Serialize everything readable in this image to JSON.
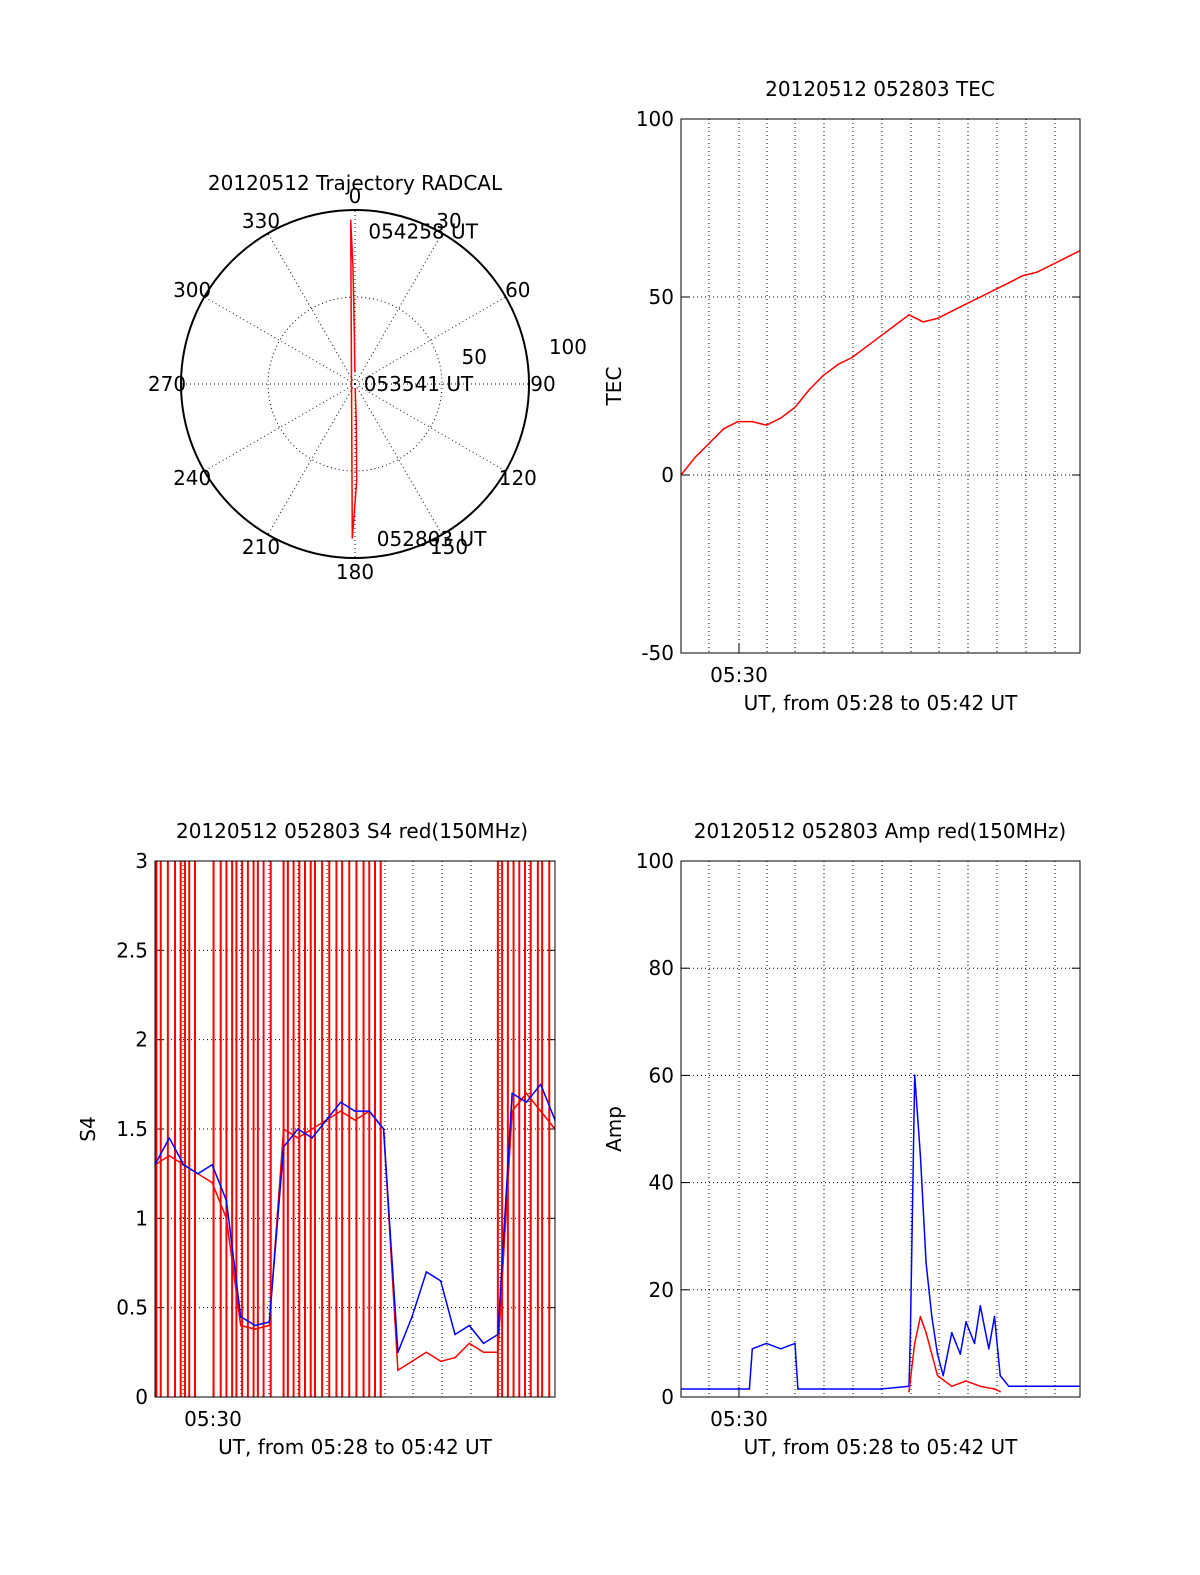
{
  "chart_data": [
    {
      "type": "polar",
      "title": "20120512 Trajectory RADCAL",
      "angle_labels": [
        "0",
        "30",
        "60",
        "90",
        "120",
        "150",
        "180",
        "210",
        "240",
        "270",
        "300",
        "330"
      ],
      "radius_labels": [
        "50",
        "100"
      ],
      "rlim": [
        0,
        100
      ],
      "track_color": "#ff0000",
      "track": {
        "az": [
          359.5,
          359.2,
          359.0,
          358.5,
          181.0,
          179.0,
          178.0,
          177.5
        ],
        "el": [
          84,
          60,
          30,
          5,
          10,
          40,
          70,
          88
        ]
      },
      "annotations": [
        {
          "text": "054258 UT",
          "az": 5,
          "r": 88
        },
        {
          "text": "053541 UT",
          "az": 90,
          "r": 5
        },
        {
          "text": "052803 UT",
          "az": 172,
          "r": 90
        }
      ]
    },
    {
      "type": "line",
      "title": "20120512 052803 TEC",
      "xlabel": "UT, from 05:28 to 05:42 UT",
      "ylabel": "TEC",
      "x_tick_label": "05:30",
      "xlim": [
        0,
        14
      ],
      "ylim": [
        -50,
        100
      ],
      "yticks": [
        "-50",
        "0",
        "50",
        "100"
      ],
      "grid": true,
      "series": [
        {
          "color": "#ff0000",
          "x": [
            0,
            0.5,
            1.0,
            1.5,
            2.0,
            2.5,
            3.0,
            3.5,
            4.0,
            4.5,
            5.0,
            5.5,
            6.0,
            6.5,
            7.0,
            7.5,
            8.0,
            8.5,
            9.0,
            9.5,
            10.0,
            10.5,
            11.0,
            11.5,
            12.0,
            12.5,
            13.0,
            13.5,
            14.0
          ],
          "y": [
            0,
            5,
            9,
            13,
            15,
            15,
            14,
            16,
            19,
            24,
            28,
            31,
            33,
            36,
            39,
            42,
            45,
            43,
            44,
            46,
            48,
            50,
            52,
            54,
            56,
            57,
            59,
            61,
            63
          ]
        }
      ]
    },
    {
      "type": "line",
      "title": "20120512 052803 S4 red(150MHz)",
      "xlabel": "UT, from 05:28 to 05:42 UT",
      "ylabel": "S4",
      "x_tick_label": "05:30",
      "xlim": [
        0,
        14
      ],
      "ylim": [
        0,
        3
      ],
      "yticks": [
        "0",
        "0.5",
        "1",
        "1.5",
        "2",
        "2.5",
        "3"
      ],
      "grid": true,
      "series": [
        {
          "color": "#ff0000",
          "x": [
            0,
            0.5,
            1.0,
            1.5,
            2.0,
            2.5,
            3.0,
            3.5,
            4.0,
            4.5,
            5.0,
            5.5,
            6.0,
            6.5,
            7.0,
            7.5,
            8.0,
            8.5,
            9.0,
            9.5,
            10.0,
            10.5,
            11.0,
            11.5,
            12.0,
            12.5,
            13.0,
            13.5,
            14.0
          ],
          "y": [
            1.3,
            1.35,
            1.3,
            1.25,
            1.2,
            1.0,
            0.4,
            0.38,
            0.4,
            1.5,
            1.45,
            1.5,
            1.55,
            1.6,
            1.55,
            1.6,
            1.5,
            0.15,
            0.2,
            0.25,
            0.2,
            0.22,
            0.3,
            0.25,
            0.25,
            1.6,
            1.7,
            1.6,
            1.5
          ],
          "spikes_x": [
            0.05,
            0.2,
            0.45,
            0.7,
            0.9,
            1.05,
            1.2,
            1.4,
            2.05,
            2.3,
            2.5,
            2.7,
            2.85,
            3.05,
            3.25,
            3.45,
            3.6,
            3.8,
            4.05,
            4.5,
            4.65,
            4.85,
            5.05,
            5.25,
            5.45,
            5.6,
            5.85,
            6.1,
            6.35,
            6.55,
            6.8,
            7.05,
            7.3,
            7.5,
            7.7,
            7.9,
            12.0,
            12.15,
            12.35,
            12.55,
            12.75,
            12.95,
            13.15,
            13.4,
            13.55,
            13.8
          ]
        },
        {
          "color": "#0000ff",
          "x": [
            0,
            0.5,
            1.0,
            1.5,
            2.0,
            2.5,
            3.0,
            3.5,
            4.0,
            4.5,
            5.0,
            5.5,
            6.0,
            6.5,
            7.0,
            7.5,
            8.0,
            8.5,
            9.0,
            9.5,
            10.0,
            10.5,
            11.0,
            11.5,
            12.0,
            12.5,
            13.0,
            13.5,
            14.0
          ],
          "y": [
            1.3,
            1.45,
            1.3,
            1.25,
            1.3,
            1.1,
            0.45,
            0.4,
            0.42,
            1.4,
            1.5,
            1.45,
            1.55,
            1.65,
            1.6,
            1.6,
            1.5,
            0.25,
            0.45,
            0.7,
            0.65,
            0.35,
            0.4,
            0.3,
            0.35,
            1.7,
            1.65,
            1.75,
            1.55
          ]
        }
      ]
    },
    {
      "type": "line",
      "title": "20120512 052803 Amp red(150MHz)",
      "xlabel": "UT, from 05:28 to 05:42 UT",
      "ylabel": "Amp",
      "x_tick_label": "05:30",
      "xlim": [
        0,
        14
      ],
      "ylim": [
        0,
        100
      ],
      "yticks": [
        "0",
        "20",
        "40",
        "60",
        "80",
        "100"
      ],
      "grid": true,
      "series": [
        {
          "color": "#0000ff",
          "x": [
            0,
            1.0,
            2.0,
            2.4,
            2.5,
            3.0,
            3.5,
            4.0,
            4.1,
            5.0,
            6.0,
            7.0,
            8.0,
            8.05,
            8.2,
            8.4,
            8.6,
            8.8,
            9.0,
            9.2,
            9.5,
            9.8,
            10.0,
            10.3,
            10.5,
            10.8,
            11.0,
            11.2,
            11.5,
            12.0,
            13.0,
            14.0
          ],
          "y": [
            1.5,
            1.5,
            1.5,
            1.5,
            9,
            10,
            9,
            10,
            1.5,
            1.5,
            1.5,
            1.5,
            2,
            12,
            60,
            45,
            25,
            15,
            8,
            4,
            12,
            8,
            14,
            10,
            17,
            9,
            15,
            4,
            2,
            2,
            2,
            2
          ]
        },
        {
          "color": "#ff0000",
          "x": [
            8.0,
            8.2,
            8.4,
            8.6,
            8.8,
            9.0,
            9.5,
            10.0,
            10.5,
            11.0,
            11.2
          ],
          "y": [
            1,
            10,
            15,
            12,
            8,
            4,
            2,
            3,
            2,
            1.5,
            1
          ]
        }
      ]
    }
  ]
}
